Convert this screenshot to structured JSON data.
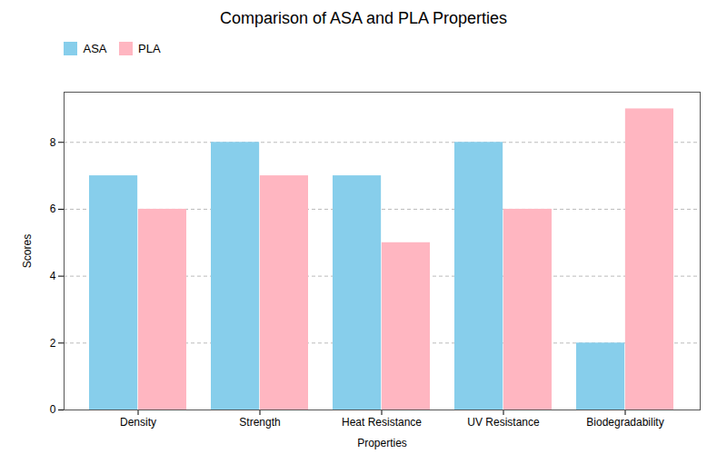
{
  "chart_data": {
    "type": "bar",
    "title": "Comparison of ASA and PLA Properties",
    "categories": [
      "Density",
      "Strength",
      "Heat Resistance",
      "UV Resistance",
      "Biodegradability"
    ],
    "series": [
      {
        "name": "ASA",
        "color": "#87CEEB",
        "values": [
          7,
          8,
          7,
          8,
          2
        ]
      },
      {
        "name": "PLA",
        "color": "#FFB6C1",
        "values": [
          6,
          7,
          5,
          6,
          9
        ]
      }
    ],
    "xlabel": "Properties",
    "ylabel": "Scores",
    "ylim": [
      0,
      9.5
    ],
    "yticks": [
      0,
      2,
      4,
      6,
      8
    ],
    "grid": true,
    "legend": "upper left"
  }
}
